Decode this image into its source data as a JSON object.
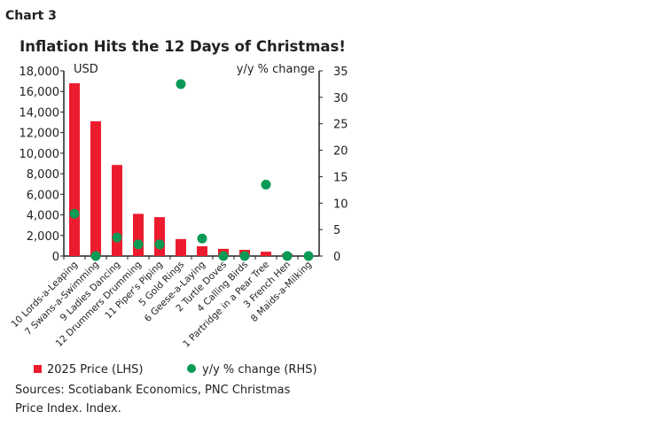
{
  "header": {
    "label": "Chart 3"
  },
  "chart_data": {
    "type": "bar+scatter",
    "title": "Inflation Hits the 12 Days of Christmas!",
    "left_axis_label": "USD",
    "right_axis_label": "y/y % change",
    "ylim_left": [
      0,
      18000
    ],
    "ylim_right": [
      0,
      35
    ],
    "left_ticks": [
      "0",
      "2,000",
      "4,000",
      "6,000",
      "8,000",
      "10,000",
      "12,000",
      "14,000",
      "16,000",
      "18,000"
    ],
    "right_ticks": [
      "0",
      "5",
      "10",
      "15",
      "20",
      "25",
      "30",
      "35"
    ],
    "categories": [
      "10 Lords-a-Leaping",
      "7 Swans-a-Swimming",
      "9 Ladies Dancing",
      "12 Drummers Drumming",
      "11 Piper's Piping",
      "5 Gold Rings",
      "6 Geese-a-Laying",
      "2 Turtle Doves",
      "4 Calling Birds",
      "1 Partridge in a Pear Tree",
      "3 French Hen",
      "8 Maids-a-Milking"
    ],
    "series": [
      {
        "name": "2025 Price (LHS)",
        "type": "bar",
        "axis": "left",
        "color": "#ec1c2e",
        "values": [
          16800,
          13100,
          8850,
          4100,
          3780,
          1650,
          950,
          700,
          600,
          420,
          230,
          60
        ]
      },
      {
        "name": "y/y % change (RHS)",
        "type": "scatter",
        "axis": "right",
        "color": "#0a9a55",
        "values": [
          8,
          0,
          3.5,
          2.2,
          2.2,
          32.5,
          3.3,
          0,
          0,
          13.5,
          0,
          0
        ]
      }
    ],
    "legend": "bottom-left",
    "grid": false
  },
  "footer": {
    "source_line1": "Sources: Scotiabank Economics, PNC Christmas",
    "source_line2": "Price Index. Index."
  }
}
